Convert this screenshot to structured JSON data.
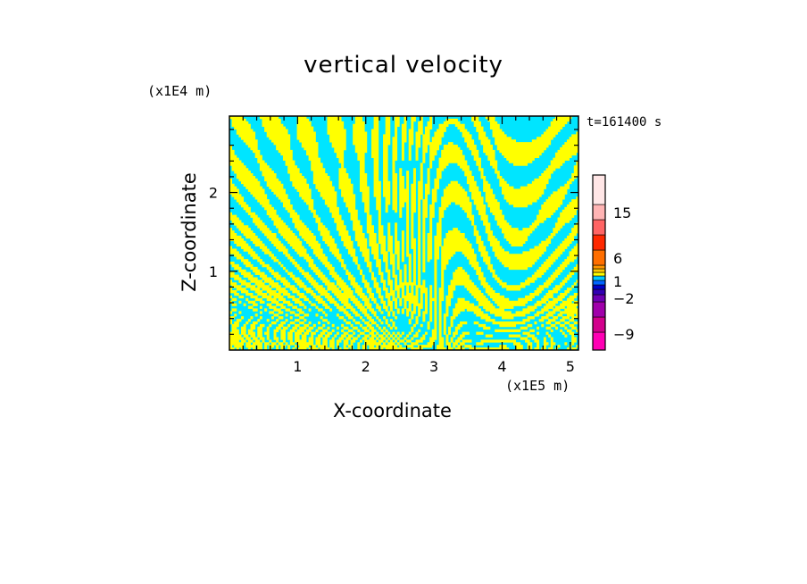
{
  "chart_data": {
    "type": "heatmap",
    "title": "vertical velocity",
    "xlabel": "X-coordinate",
    "ylabel": "Z-coordinate",
    "x_multiplier": "(x1E5 m)",
    "y_multiplier": "(x1E4 m)",
    "time_label": "t=161400 s",
    "xlim": [
      0,
      5.12
    ],
    "ylim": [
      0,
      2.97
    ],
    "x_ticks": [
      {
        "value": 1,
        "label": "1"
      },
      {
        "value": 2,
        "label": "2"
      },
      {
        "value": 3,
        "label": "3"
      },
      {
        "value": 4,
        "label": "4"
      },
      {
        "value": 5,
        "label": "5"
      }
    ],
    "y_ticks": [
      {
        "value": 1,
        "label": "1"
      },
      {
        "value": 2,
        "label": "2"
      }
    ],
    "field_colors": {
      "positive": "#ffff00",
      "negative": "#00e5ff"
    },
    "colorbar": {
      "levels_colors": [
        "#ff00b4",
        "#d2008c",
        "#a000aa",
        "#6e00b4",
        "#3200b4",
        "#0000c8",
        "#0064ff",
        "#00c8ff",
        "#ffff00",
        "#ffc800",
        "#ff9600",
        "#ff6e00",
        "#ff2800",
        "#ff6464",
        "#ffb4b4",
        "#ffe6e6"
      ],
      "labels": [
        {
          "value": -9,
          "label": "−9"
        },
        {
          "value": -2,
          "label": "−2"
        },
        {
          "value": 1,
          "label": "1"
        },
        {
          "value": 6,
          "label": "6"
        },
        {
          "value": 15,
          "label": "15"
        }
      ]
    }
  }
}
